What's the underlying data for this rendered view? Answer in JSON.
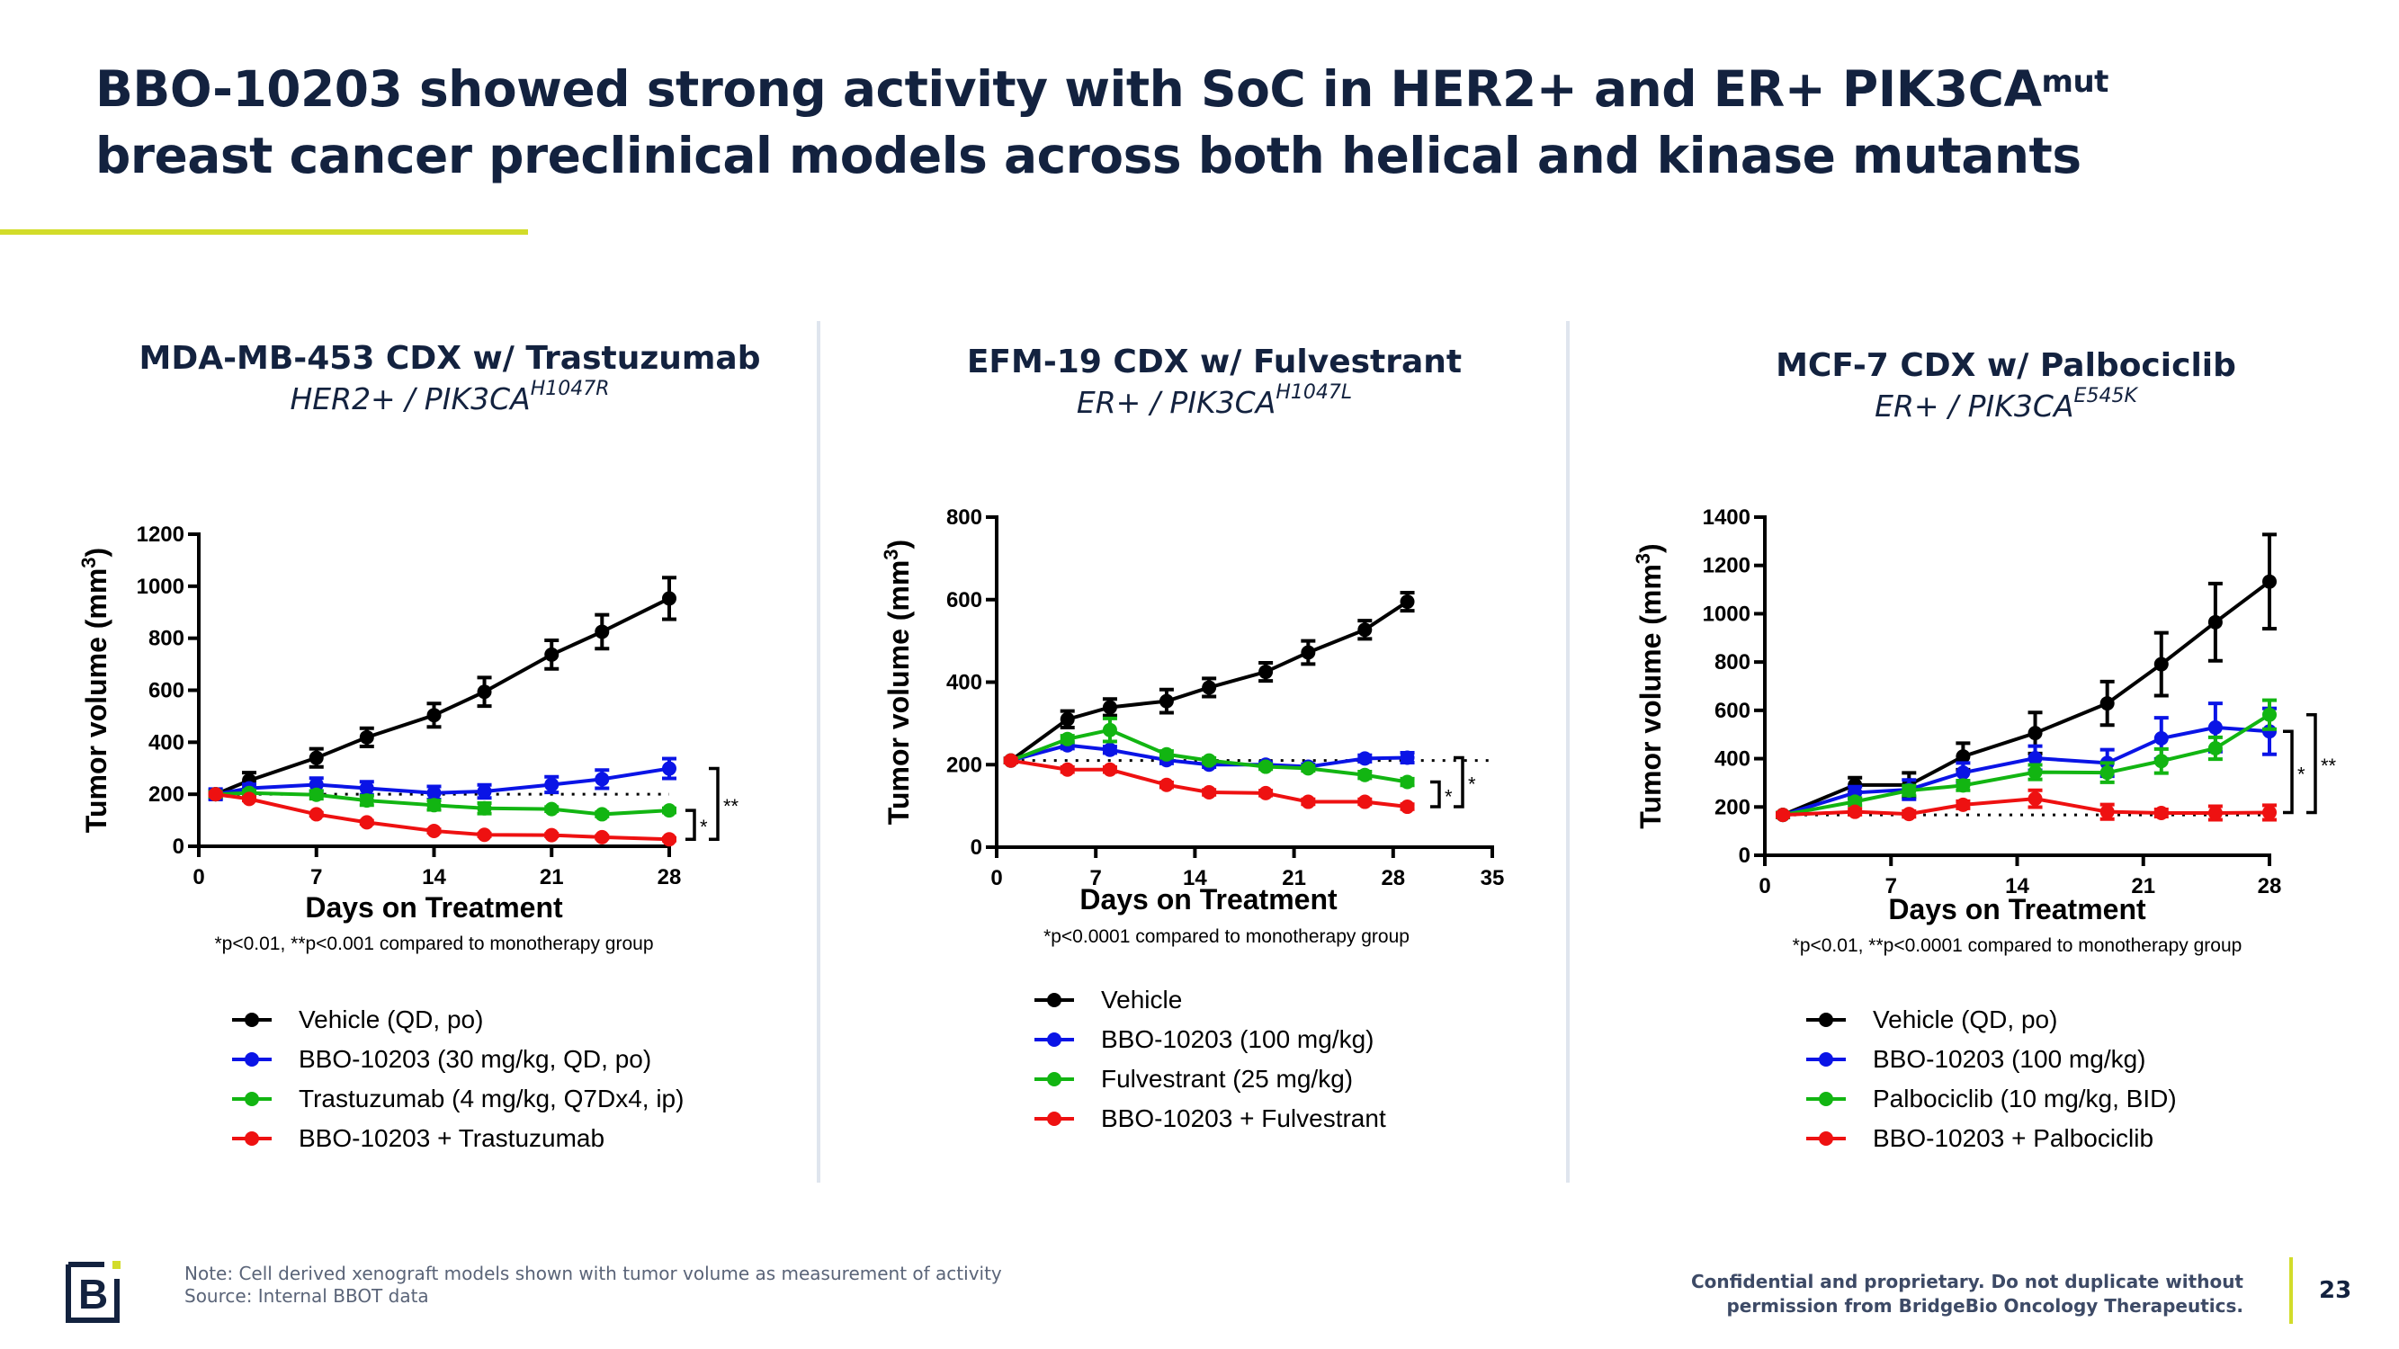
{
  "slide": {
    "title_line1": "BBO-10203 showed strong activity with SoC in HER2+ and ER+ PIK3CA",
    "title_line1_sup": "mut",
    "title_line2": "breast cancer preclinical models across both helical and kinase mutants",
    "accent_color": "#d2dc2a",
    "title_color": "#13223f",
    "footer_note_line1": "Note: Cell derived xenograft models shown with tumor volume as measurement of activity",
    "footer_note_line2": "Source: Internal BBOT data",
    "confidential_line1": "Confidential and proprietary. Do not duplicate without",
    "confidential_line2": "permission from BridgeBio Oncology Therapeutics.",
    "page_number": "23",
    "logo": "bridgebio-logo-icon"
  },
  "series_colors": {
    "vehicle": "#000000",
    "bbo": "#0a14e6",
    "soc": "#12b512",
    "combo": "#ee1111"
  },
  "chart_data": [
    {
      "type": "line",
      "title": "MDA-MB-453 CDX w/ Trastuzumab",
      "subtitle": "HER2+ / PIK3CA",
      "subtitle_sup": "H1047R",
      "xlabel": "Days on Treatment",
      "ylabel": "Tumor volume (mm",
      "ylabel_sup": "3",
      "ylabel_close": ")",
      "xlim": [
        0,
        28
      ],
      "ylim": [
        0,
        1200
      ],
      "xticks": [
        0,
        7,
        14,
        21,
        28
      ],
      "yticks": [
        0,
        200,
        400,
        600,
        800,
        1000,
        1200
      ],
      "reference_line": 200,
      "footnote": "*p<0.01, **p<0.001 compared to monotherapy group",
      "x": [
        1,
        3,
        7,
        10,
        14,
        17,
        21,
        24,
        28
      ],
      "series": [
        {
          "name": "Vehicle (QD, po)",
          "key": "vehicle",
          "values": [
            200,
            253,
            340,
            419,
            504,
            594,
            737,
            825,
            953
          ],
          "errors": [
            15,
            30,
            35,
            35,
            45,
            55,
            55,
            65,
            80
          ]
        },
        {
          "name": "BBO-10203 (30 mg/kg, QD, po)",
          "key": "bbo",
          "values": [
            200,
            223,
            237,
            223,
            205,
            211,
            237,
            258,
            299
          ],
          "errors": [
            20,
            15,
            25,
            25,
            25,
            25,
            30,
            35,
            38
          ]
        },
        {
          "name": "Trastuzumab (4 mg/kg, Q7Dx4, ip)",
          "key": "soc",
          "values": [
            200,
            205,
            198,
            176,
            158,
            146,
            143,
            123,
            138
          ],
          "errors": [
            10,
            10,
            15,
            18,
            18,
            20,
            8,
            8,
            8
          ]
        },
        {
          "name": "BBO-10203 + Trastuzumab",
          "key": "combo",
          "values": [
            200,
            182,
            123,
            92,
            59,
            44,
            43,
            35,
            27
          ],
          "errors": [
            6,
            6,
            6,
            6,
            6,
            5,
            5,
            5,
            5
          ]
        }
      ],
      "significance": [
        {
          "label": "*",
          "from": 27,
          "to": 138
        },
        {
          "label": "**",
          "from": 27,
          "to": 299
        }
      ]
    },
    {
      "type": "line",
      "title": "EFM-19 CDX w/ Fulvestrant",
      "subtitle": "ER+ / PIK3CA",
      "subtitle_sup": "H1047L",
      "xlabel": "Days on Treatment",
      "ylabel": "Tumor volume (mm",
      "ylabel_sup": "3",
      "ylabel_close": ")",
      "xlim": [
        0,
        35
      ],
      "ylim": [
        0,
        800
      ],
      "xticks": [
        0,
        7,
        14,
        21,
        28,
        35
      ],
      "yticks": [
        0,
        200,
        400,
        600,
        800
      ],
      "reference_line": 210,
      "footnote": "*p<0.0001 compared to monotherapy group",
      "x": [
        1,
        5,
        8,
        12,
        15,
        19,
        22,
        26,
        29
      ],
      "series": [
        {
          "name": "Vehicle",
          "key": "vehicle",
          "values": [
            210,
            310,
            339,
            354,
            387,
            425,
            472,
            527,
            595
          ],
          "errors": [
            5,
            20,
            20,
            28,
            22,
            22,
            28,
            22,
            22
          ]
        },
        {
          "name": "BBO-10203 (100 mg/kg)",
          "key": "bbo",
          "values": [
            210,
            247,
            236,
            211,
            200,
            200,
            195,
            215,
            217
          ],
          "errors": [
            5,
            8,
            8,
            8,
            6,
            6,
            6,
            8,
            12
          ]
        },
        {
          "name": "Fulvestrant (25 mg/kg)",
          "key": "soc",
          "values": [
            210,
            262,
            284,
            225,
            210,
            195,
            191,
            175,
            158
          ],
          "errors": [
            5,
            8,
            28,
            8,
            6,
            6,
            6,
            8,
            8
          ]
        },
        {
          "name": "BBO-10203 + Fulvestrant",
          "key": "combo",
          "values": [
            210,
            188,
            188,
            151,
            133,
            131,
            110,
            110,
            98
          ],
          "errors": [
            5,
            6,
            6,
            6,
            6,
            6,
            6,
            6,
            6
          ]
        }
      ],
      "significance": [
        {
          "label": "*",
          "from": 98,
          "to": 158
        },
        {
          "label": "*",
          "from": 98,
          "to": 217
        }
      ]
    },
    {
      "type": "line",
      "title": "MCF-7 CDX w/ Palbociclib",
      "subtitle": "ER+ / PIK3CA",
      "subtitle_sup": "E545K",
      "xlabel": "Days on Treatment",
      "ylabel": "Tumor volume (mm",
      "ylabel_sup": "3",
      "ylabel_close": ")",
      "xlim": [
        0,
        28
      ],
      "ylim": [
        0,
        1400
      ],
      "xticks": [
        0,
        7,
        14,
        21,
        28
      ],
      "yticks": [
        0,
        200,
        400,
        600,
        800,
        1000,
        1200,
        1400
      ],
      "reference_line": 167,
      "footnote": "*p<0.01, **p<0.0001 compared to monotherapy group",
      "x": [
        1,
        5,
        8,
        11,
        15,
        19,
        22,
        25,
        28
      ],
      "series": [
        {
          "name": "Vehicle (QD, po)",
          "key": "vehicle",
          "values": [
            167,
            291,
            291,
            409,
            506,
            629,
            791,
            965,
            1133
          ],
          "errors": [
            10,
            30,
            50,
            55,
            85,
            90,
            130,
            160,
            195
          ]
        },
        {
          "name": "BBO-10203 (100 mg/kg)",
          "key": "bbo",
          "values": [
            167,
            259,
            272,
            342,
            402,
            382,
            484,
            529,
            513
          ],
          "errors": [
            10,
            25,
            40,
            40,
            50,
            55,
            85,
            100,
            95
          ]
        },
        {
          "name": "Palbociclib (10 mg/kg, BID)",
          "key": "soc",
          "values": [
            167,
            222,
            268,
            289,
            344,
            342,
            390,
            443,
            582
          ],
          "errors": [
            10,
            15,
            20,
            20,
            30,
            40,
            50,
            45,
            60
          ]
        },
        {
          "name": "BBO-10203 + Palbociclib",
          "key": "combo",
          "values": [
            167,
            180,
            171,
            209,
            234,
            180,
            175,
            175,
            177
          ],
          "errors": [
            8,
            12,
            12,
            15,
            35,
            30,
            15,
            28,
            30
          ]
        }
      ],
      "significance": [
        {
          "label": "*",
          "from": 177,
          "to": 513
        },
        {
          "label": "**",
          "from": 177,
          "to": 582
        }
      ]
    }
  ]
}
